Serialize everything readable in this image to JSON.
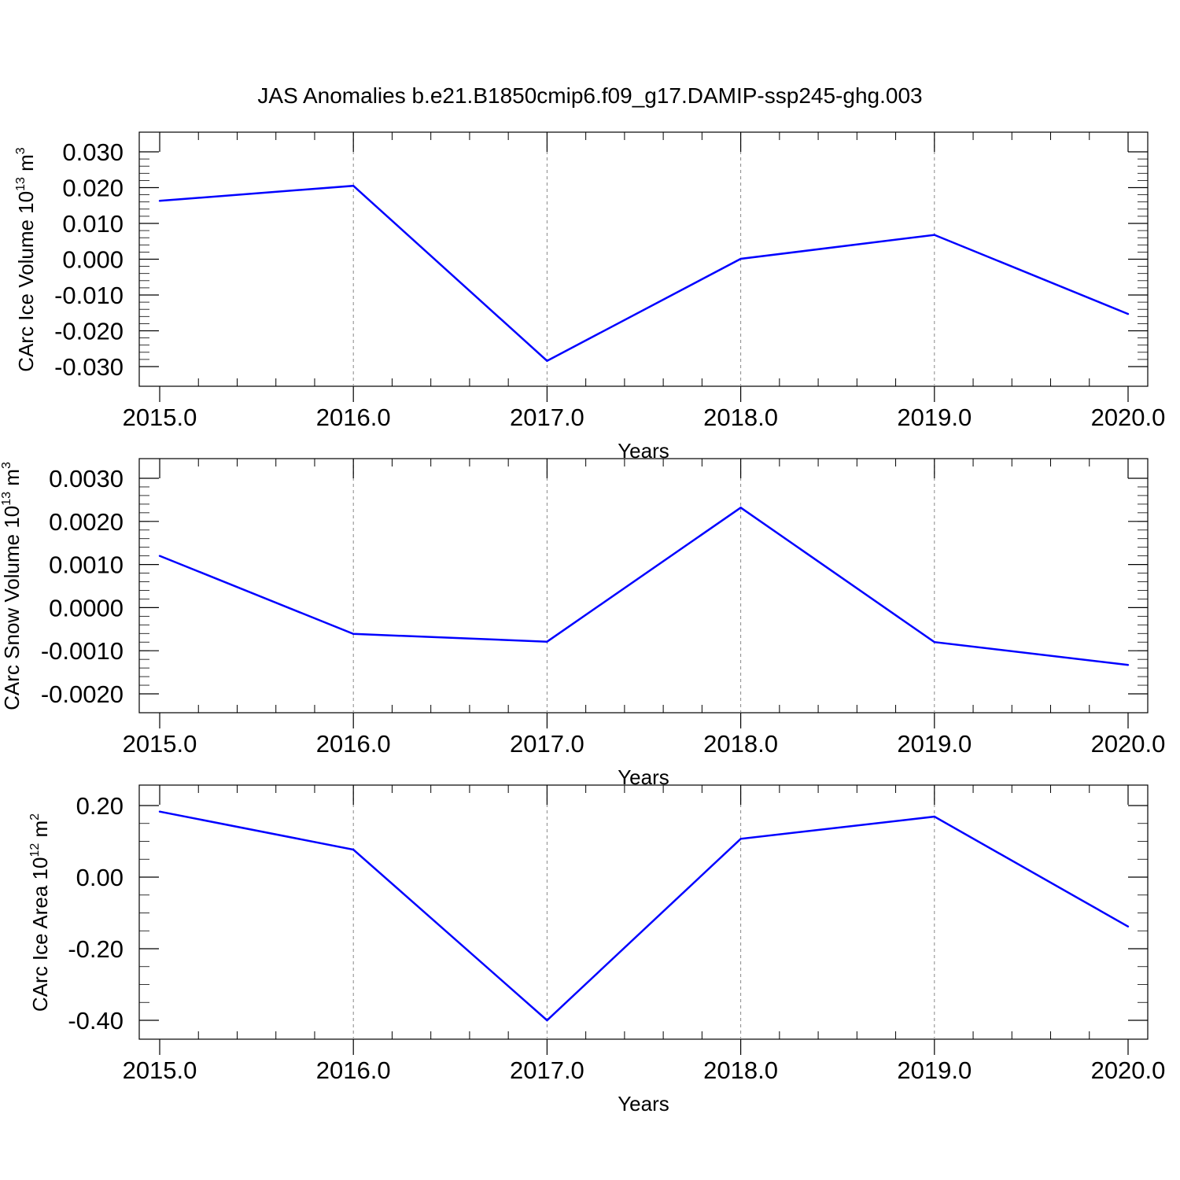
{
  "title": "JAS Anomalies b.e21.B1850cmip6.f09_g17.DAMIP-ssp245-ghg.003",
  "line_color": "#0000ff",
  "chart_data": [
    {
      "type": "line",
      "xlabel": "Years",
      "ylabel": {
        "main": "CArc Ice Volume 10",
        "sup1": "13",
        "unit": " m",
        "sup2": "3"
      },
      "x": [
        2015,
        2016,
        2017,
        2018,
        2019,
        2020
      ],
      "xlim": [
        2015,
        2020
      ],
      "x_ticks": [
        2015,
        2016,
        2017,
        2018,
        2019,
        2020
      ],
      "x_tick_labels": [
        "2015.0",
        "2016.0",
        "2017.0",
        "2018.0",
        "2019.0",
        "2020.0"
      ],
      "ylim": [
        -0.03,
        0.03
      ],
      "y_ticks": [
        -0.03,
        -0.02,
        -0.01,
        0,
        0.01,
        0.02,
        0.03
      ],
      "y_tick_labels": [
        "-0.030",
        "-0.020",
        "-0.010",
        "0.000",
        "0.010",
        "0.020",
        "0.030"
      ],
      "y_minor_step": 0.002,
      "series": [
        {
          "values": [
            0.0163,
            0.0205,
            -0.0284,
            0.0001,
            0.0068,
            -0.0153
          ]
        }
      ]
    },
    {
      "type": "line",
      "xlabel": "Years",
      "ylabel": {
        "main": "CArc Snow Volume 10",
        "sup1": "13",
        "unit": " m",
        "sup2": "3"
      },
      "x": [
        2015,
        2016,
        2017,
        2018,
        2019,
        2020
      ],
      "xlim": [
        2015,
        2020
      ],
      "x_ticks": [
        2015,
        2016,
        2017,
        2018,
        2019,
        2020
      ],
      "x_tick_labels": [
        "2015.0",
        "2016.0",
        "2017.0",
        "2018.0",
        "2019.0",
        "2020.0"
      ],
      "ylim": [
        -0.002,
        0.003
      ],
      "y_ticks": [
        -0.002,
        -0.001,
        0,
        0.001,
        0.002,
        0.003
      ],
      "y_tick_labels": [
        "-0.0020",
        "-0.0010",
        "0.0000",
        "0.0010",
        "0.0020",
        "0.0030"
      ],
      "y_minor_step": 0.0002,
      "series": [
        {
          "values": [
            0.0012,
            -0.00061,
            -0.00079,
            0.00232,
            -0.0008,
            -0.00133
          ]
        }
      ]
    },
    {
      "type": "line",
      "xlabel": "Years",
      "ylabel": {
        "main": "CArc Ice Area 10",
        "sup1": "12",
        "unit": " m",
        "sup2": "2"
      },
      "x": [
        2015,
        2016,
        2017,
        2018,
        2019,
        2020
      ],
      "xlim": [
        2015,
        2020
      ],
      "x_ticks": [
        2015,
        2016,
        2017,
        2018,
        2019,
        2020
      ],
      "x_tick_labels": [
        "2015.0",
        "2016.0",
        "2017.0",
        "2018.0",
        "2019.0",
        "2020.0"
      ],
      "ylim": [
        -0.4,
        0.2
      ],
      "y_ticks": [
        -0.4,
        -0.2,
        0,
        0.2
      ],
      "y_tick_labels": [
        "-0.40",
        "-0.20",
        "0.00",
        "0.20"
      ],
      "y_minor_step": 0.05,
      "series": [
        {
          "values": [
            0.183,
            0.077,
            -0.4,
            0.107,
            0.169,
            -0.138
          ]
        }
      ]
    }
  ]
}
